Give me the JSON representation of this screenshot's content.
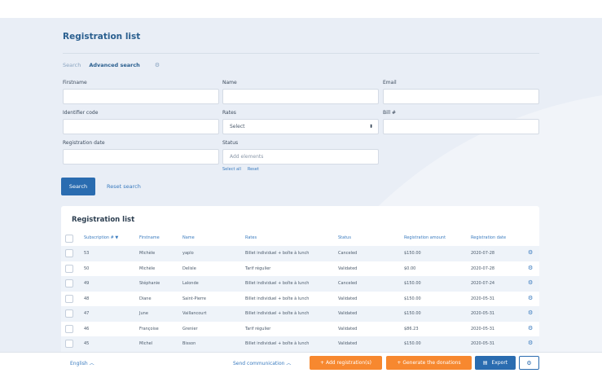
{
  "page": {
    "title": "Registration list",
    "tabs": {
      "search": "Search",
      "advanced": "Advanced search"
    }
  },
  "form": {
    "firstname_label": "Firstname",
    "name_label": "Name",
    "email_label": "Email",
    "identifier_label": "Identifier code",
    "rates_label": "Rates",
    "rates_value": "Select",
    "bill_label": "Bill #",
    "regdate_label": "Registration date",
    "status_label": "Status",
    "status_placeholder": "Add elements",
    "select_all": "Select all",
    "reset": "Reset",
    "search_button": "Search",
    "reset_search": "Reset search"
  },
  "table": {
    "title": "Registration list",
    "headers": [
      "Subscription # ▼",
      "Firstname",
      "Name",
      "Rates",
      "Status",
      "Registration amount",
      "Registration date"
    ],
    "rows": [
      [
        "53",
        "Michèle",
        "yaplo",
        "Billet individuel + boîte à lunch",
        "Canceled",
        "$150.00",
        "2020-07-28"
      ],
      [
        "50",
        "Michèle",
        "Delisle",
        "Tarif régulier",
        "Validated",
        "$0.00",
        "2020-07-28"
      ],
      [
        "49",
        "Stéphanie",
        "Lalonde",
        "Billet individuel + boîte à lunch",
        "Canceled",
        "$150.00",
        "2020-07-24"
      ],
      [
        "48",
        "Diane",
        "Saint-Pierre",
        "Billet individuel + boîte à lunch",
        "Validated",
        "$150.00",
        "2020-05-31"
      ],
      [
        "47",
        "June",
        "Vaillancourt",
        "Billet individuel + boîte à lunch",
        "Validated",
        "$150.00",
        "2020-05-31"
      ],
      [
        "46",
        "Françoise",
        "Grenier",
        "Tarif régulier",
        "Validated",
        "$86.23",
        "2020-05-31"
      ],
      [
        "45",
        "Michel",
        "Bisson",
        "Billet individuel + boîte à lunch",
        "Validated",
        "$150.00",
        "2020-05-31"
      ]
    ]
  },
  "footer": {
    "language": "English ︿",
    "send": "Send communication ︿",
    "add": "+ Add registration(s)",
    "generate": "+ Generate the donations",
    "export": "Export"
  },
  "icons": {
    "settings": "gear-icon",
    "export": "document-icon"
  },
  "colors": {
    "primary": "#2a6cb0",
    "accent": "#f7882f"
  }
}
